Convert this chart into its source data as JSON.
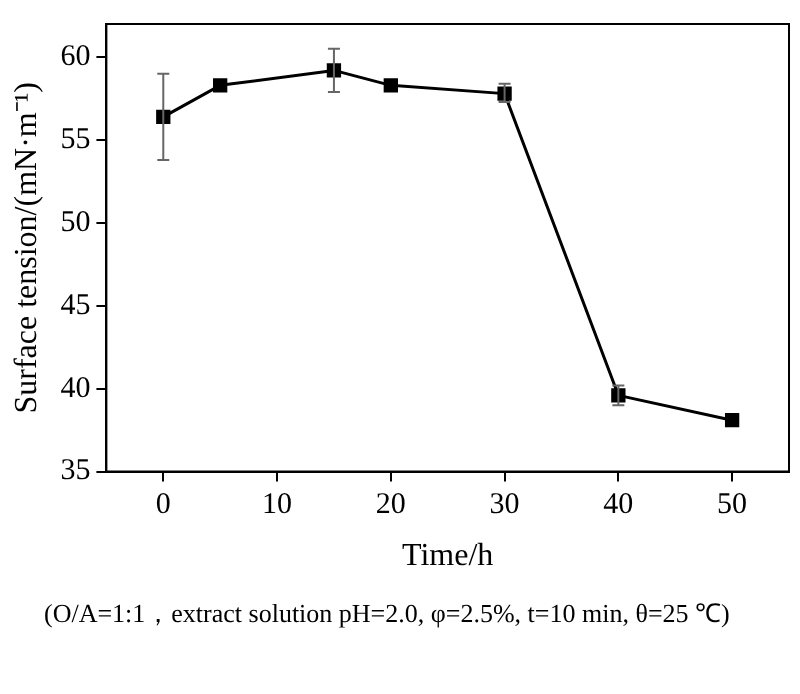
{
  "chart_data": {
    "type": "line",
    "xlabel": "Time/h",
    "ylabel": "Surface tension/(mN·m⁻¹)",
    "x": [
      0,
      5,
      15,
      20,
      30,
      40,
      50
    ],
    "series": [
      {
        "color": "#000000",
        "values": [
          56.4,
          58.3,
          59.2,
          58.3,
          57.8,
          39.6,
          38.1
        ],
        "errors": [
          [
            53.8,
            59.0
          ],
          null,
          [
            57.9,
            60.5
          ],
          null,
          [
            57.3,
            58.4
          ],
          [
            39.0,
            40.2
          ],
          null
        ]
      }
    ],
    "xlim": [
      -5,
      55
    ],
    "xticks": [
      0,
      10,
      20,
      30,
      40,
      50
    ],
    "ylim": [
      35,
      62
    ],
    "yticks": [
      35,
      40,
      45,
      50,
      55,
      60
    ],
    "grid": false,
    "legend": false,
    "marker": "square",
    "line_style": "solid",
    "annotations": [
      "(O/A=1:1，extract solution pH=2.0, φ=2.5%, t=10 min, θ=25 ℃)"
    ]
  }
}
